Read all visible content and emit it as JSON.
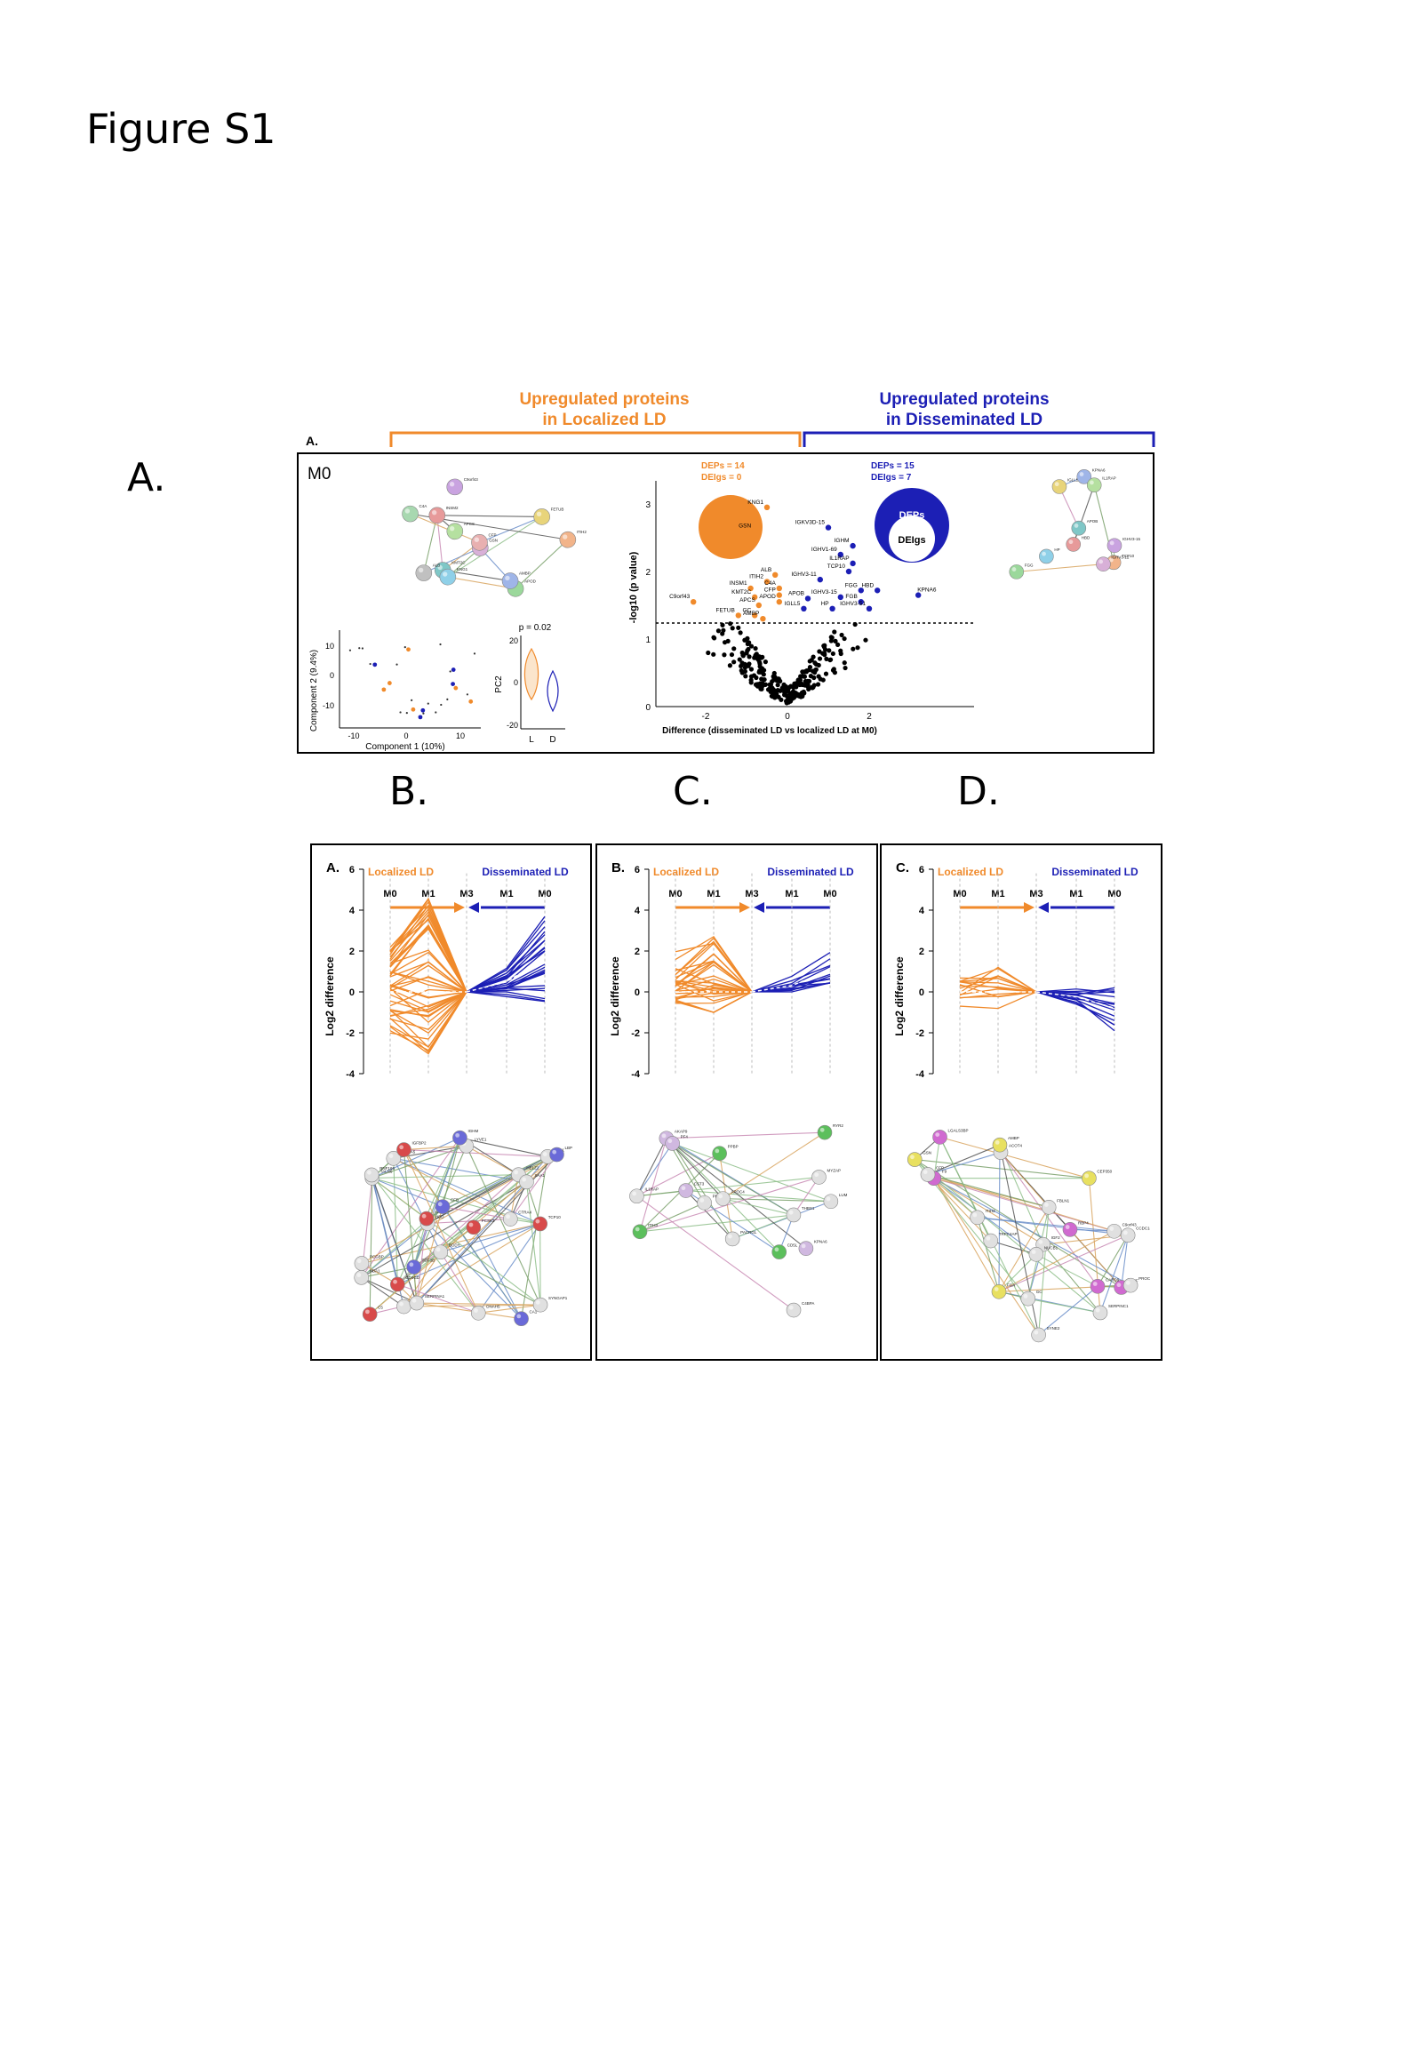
{
  "figure_title": "Figure S1",
  "panel_letters": {
    "a": "A.",
    "b": "B.",
    "c": "C.",
    "d": "D."
  },
  "headers": {
    "orange": [
      "Upregulated proteins",
      "in Localized LD"
    ],
    "blue": [
      "Upregulated proteins",
      "in Disseminated LD"
    ]
  },
  "top_panel": {
    "sub_letter": "A.",
    "label": "M0",
    "colors": {
      "localized": "#f08a2b",
      "disseminated": "#1c1fb5",
      "other": "#000000"
    },
    "orange_legend": [
      "DEPs = 14",
      "DEIgs = 0"
    ],
    "blue_legend": [
      "DEPs = 15",
      "DEIgs = 7"
    ],
    "circle_labels": {
      "outer": "DEPs",
      "inner": "DEIgs"
    },
    "network_left_labels": [
      "APOD",
      "C9orf43",
      "KMT2C",
      "INSM2",
      "FETUB",
      "AMBP",
      "ITIH2",
      "APCS",
      "GSN",
      "KNG1",
      "ALB",
      "C4A",
      "CFP"
    ],
    "network_right_labels": [
      "FGG",
      "IGHV3-15",
      "APOB",
      "HBD",
      "IGLL5",
      "KPNA6",
      "TCP10",
      "IL1RAP",
      "IGHV3-12",
      "HP"
    ],
    "pca": {
      "xlabel": "Component 1 (10%)",
      "ylabel": "Component 2 (9.4%)",
      "x_ticks": [
        "-10",
        "0",
        "10"
      ],
      "y_ticks": [
        "10",
        "0",
        "-10"
      ]
    },
    "violin": {
      "p_label": "p = 0.02",
      "ylabel": "PC2",
      "y_ticks": [
        "20",
        "0",
        "-20"
      ],
      "x_ticks": [
        "L",
        "D"
      ]
    },
    "volcano": {
      "xlabel": "Difference (disseminated LD vs localized LD at M0)",
      "ylabel": "-log10 (p value)",
      "x_ticks": [
        "-2",
        "0",
        "2"
      ],
      "y_ticks": [
        "0",
        "1",
        "2",
        "3"
      ],
      "labels_orange": [
        "KNG1",
        "GSN",
        "ALB",
        "ITIH2",
        "C4A",
        "INSM1",
        "CFP",
        "KMT2C",
        "APOD",
        "C9orf43",
        "APCS",
        "FETUB",
        "GC",
        "AMBP"
      ],
      "labels_blue": [
        "IGKV3D-15",
        "IGHM",
        "IGHV1-69",
        "IL1RAP",
        "IGHV3-11",
        "TCP10",
        "FGG",
        "HBD",
        "KPNA6",
        "APOB",
        "IGHV3-15",
        "IGLL5",
        "HP",
        "FGB",
        "IGHV3-51"
      ]
    }
  },
  "trend_panels": [
    {
      "sub_letter": "A.",
      "left_label": "Localized LD",
      "right_label": "Disseminated LD",
      "months": [
        "M0",
        "M1",
        "M3",
        "M1",
        "M0"
      ],
      "ylabel": "Log2 difference",
      "y_ticks": [
        "6",
        "4",
        "2",
        "0",
        "-2",
        "-4"
      ],
      "network_labels": [
        "MBCA5",
        "TCP10",
        "HBD",
        "CA1",
        "HBA1",
        "TALN6",
        "PCSK3",
        "SAA2",
        "TGF3B",
        "EPI1",
        "HELZ2",
        "IGFBP2",
        "RNF166",
        "LBP",
        "SERPINA1",
        "LYVE1",
        "C5",
        "SAA1",
        "IGHM",
        "DNAH5",
        "PCGBP",
        "AACT",
        "CTRA4",
        "CFB",
        "BODY",
        "SYNGAP1",
        "CD4GD"
      ]
    },
    {
      "sub_letter": "B.",
      "left_label": "Localized LD",
      "right_label": "Disseminated LD",
      "months": [
        "M0",
        "M1",
        "M3",
        "M1",
        "M0"
      ],
      "ylabel": "Log2 difference",
      "y_ticks": [
        "6",
        "4",
        "2",
        "0",
        "-2",
        "-4"
      ],
      "network_labels": [
        "LUM",
        "PPBP",
        "PACRGL",
        "KPNA6",
        "THBS1",
        "ITIH3",
        "PRG4",
        "AKAP9",
        "MYZAP",
        "RYR2",
        "IL1RAP",
        "PF4",
        "C4BPA",
        "CD5L",
        "APOC4",
        "CST3"
      ]
    },
    {
      "sub_letter": "C.",
      "left_label": "Localized LD",
      "right_label": "Disseminated LD",
      "months": [
        "M0",
        "M1",
        "M3",
        "M1",
        "M0"
      ],
      "ylabel": "Log2 difference",
      "y_ticks": [
        "6",
        "4",
        "2",
        "0",
        "-2",
        "-4"
      ],
      "network_labels": [
        "IGF2",
        "VWF",
        "NUCB1",
        "CEP350",
        "ACOT4",
        "PROC",
        "F9",
        "CFP",
        "FGA",
        "SERPINC1",
        "ITIH2",
        "LGALS3BP",
        "TRPC4AP",
        "AMBP",
        "GC",
        "CCDC18",
        "RBP4",
        "C9orf43",
        "GSN",
        "SYNE2",
        "FBLN1",
        "CARD9"
      ]
    }
  ]
}
